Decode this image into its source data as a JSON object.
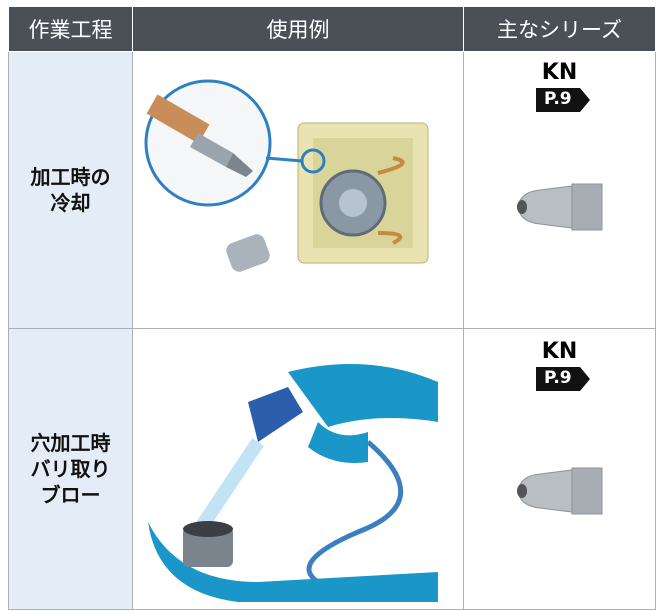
{
  "table": {
    "header": [
      "作業工程",
      "使用例",
      "主なシリーズ"
    ],
    "rows": [
      {
        "process": [
          "加工時の",
          "冷却"
        ],
        "series": "KN",
        "page": "P.9"
      },
      {
        "process": [
          "穴加工時",
          "バリ取り",
          "ブロー"
        ],
        "series": "KN",
        "page": "P.9"
      }
    ]
  }
}
